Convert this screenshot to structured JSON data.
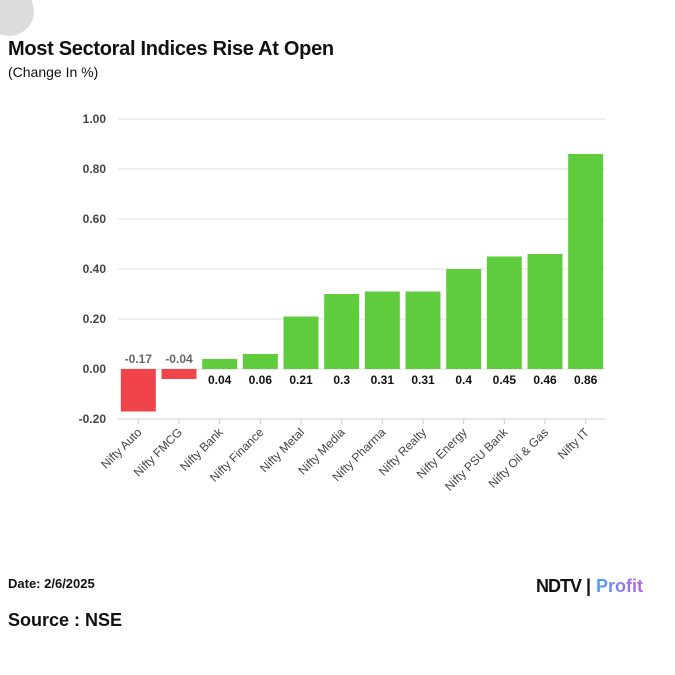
{
  "header": {
    "title": "Most Sectoral Indices Rise At Open",
    "subtitle": "(Change In %)"
  },
  "footer": {
    "date": "Date: 2/6/2025",
    "source": "Source : NSE",
    "logo_ndtv": "NDTV",
    "logo_profit": "Profit"
  },
  "colors": {
    "positive": "#5fcc3e",
    "negative": "#f0444a",
    "grid": "#e0e0e0"
  },
  "chart_data": {
    "type": "bar",
    "title": "Most Sectoral Indices Rise At Open",
    "subtitle": "(Change In %)",
    "categories": [
      "Nifty Auto",
      "Nifty FMCG",
      "Nifty Bank",
      "Nifty Finance",
      "Nifty Metal",
      "Nifty Media",
      "Nifty Pharma",
      "Nifty Realty",
      "Nifty Energy",
      "Nifty PSU Bank",
      "Nifty Oil & Gas",
      "Nifty IT"
    ],
    "values": [
      -0.17,
      -0.04,
      0.04,
      0.06,
      0.21,
      0.3,
      0.31,
      0.31,
      0.4,
      0.45,
      0.46,
      0.86
    ],
    "data_labels": [
      "-0.17",
      "-0.04",
      "0.04",
      "0.06",
      "0.21",
      "0.3",
      "0.31",
      "0.31",
      "0.4",
      "0.45",
      "0.46",
      "0.86"
    ],
    "yticks": [
      "1.00",
      "0.80",
      "0.60",
      "0.40",
      "0.20",
      "0.00",
      "-0.20"
    ],
    "ylim": [
      -0.2,
      1.0
    ],
    "grid": true,
    "legend": "none"
  }
}
